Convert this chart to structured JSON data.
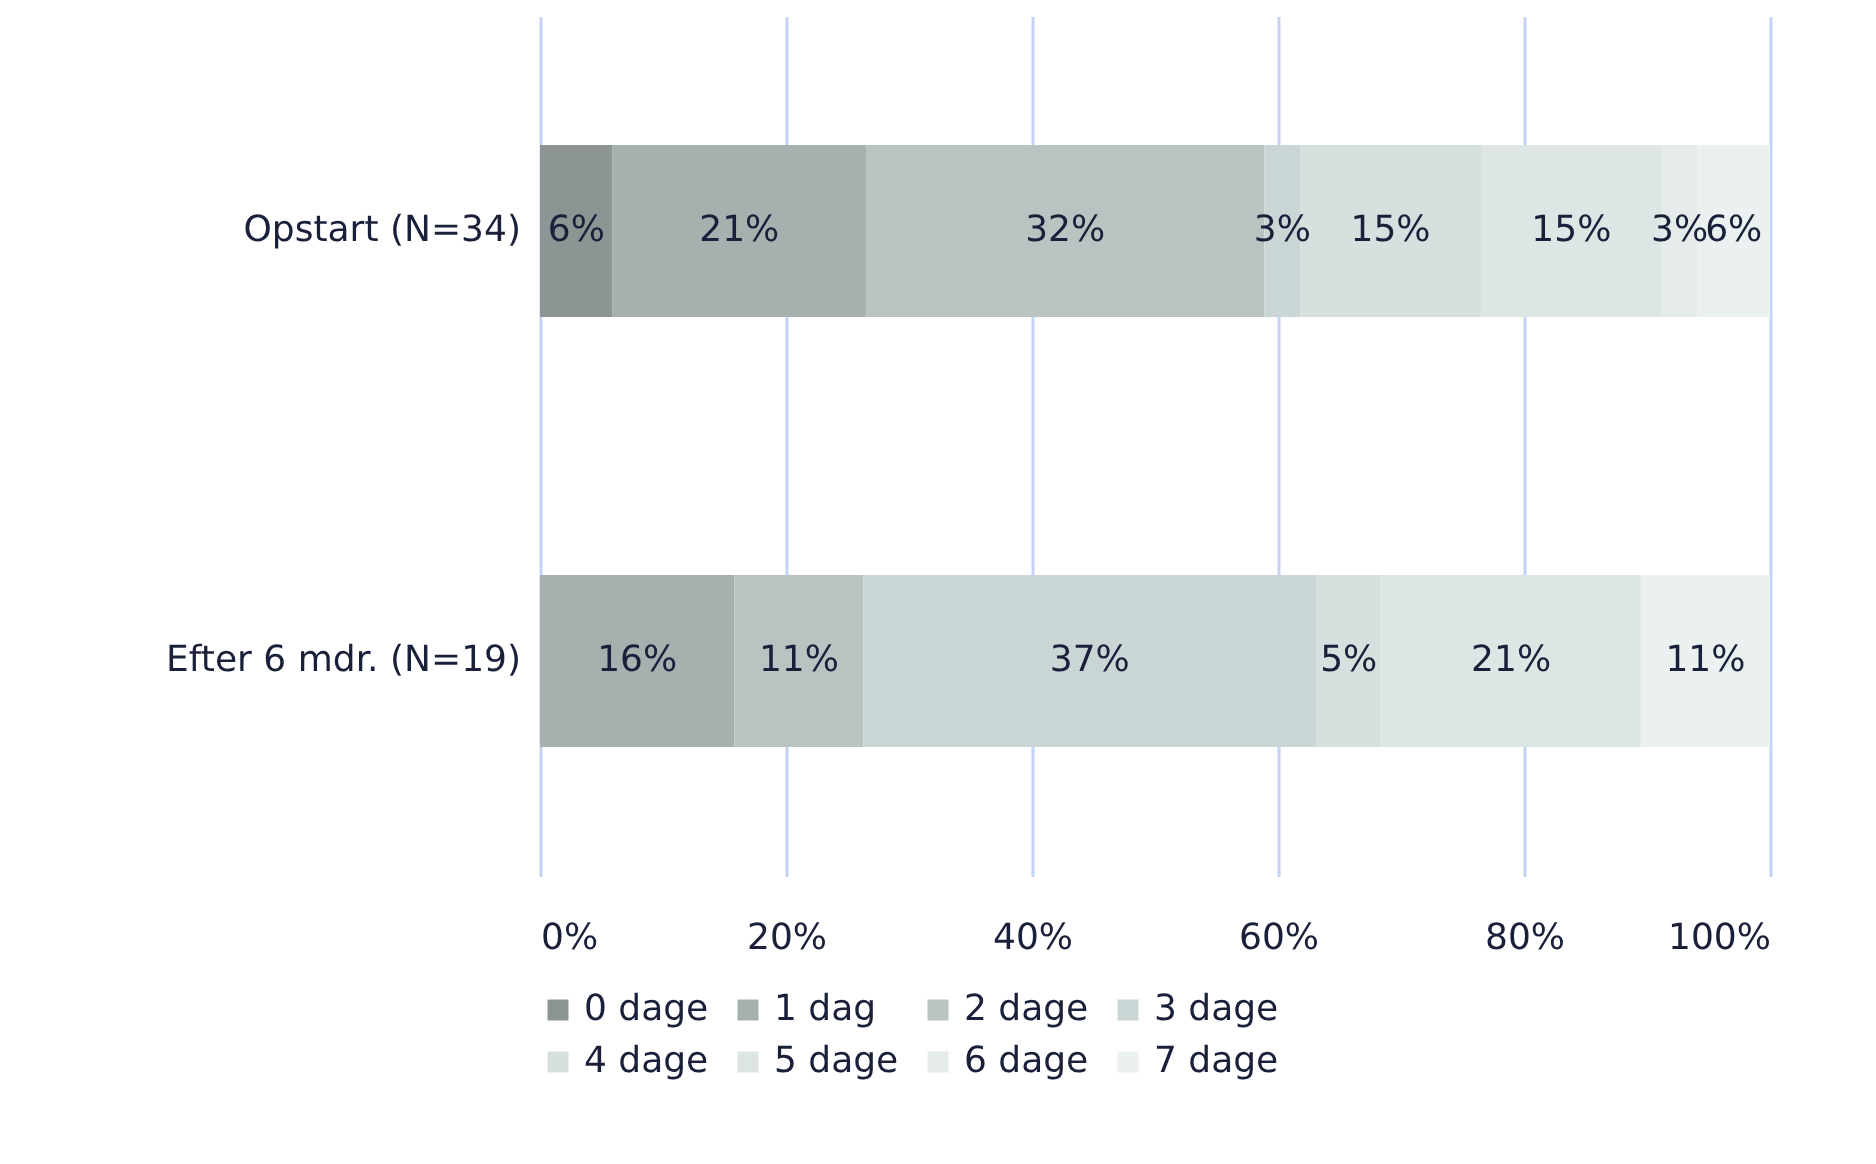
{
  "chart_data": {
    "type": "bar",
    "orientation": "horizontal",
    "stacked": true,
    "categories": [
      "Opstart (N=34)",
      "Efter 6 mdr. (N=19)"
    ],
    "series": [
      {
        "name": "0 dage",
        "color": "#8c9593",
        "values": [
          5.9,
          null
        ],
        "value_labels": [
          "6%",
          null
        ]
      },
      {
        "name": "1 dag",
        "color": "#a5b0af",
        "values": [
          20.6,
          15.8
        ],
        "value_labels": [
          "21%",
          "16%"
        ]
      },
      {
        "name": "2 dage",
        "color": "#b8c3c2",
        "values": [
          32.4,
          10.5
        ],
        "value_labels": [
          "32%",
          "11%"
        ]
      },
      {
        "name": "3 dage",
        "color": "#c9d6d5",
        "values": [
          2.9,
          36.8
        ],
        "value_labels": [
          "3%",
          "37%"
        ]
      },
      {
        "name": "4 dage",
        "color": "#d5e0df",
        "values": [
          14.7,
          5.3
        ],
        "value_labels": [
          "15%",
          "5%"
        ]
      },
      {
        "name": "5 dage",
        "color": "#dde6e4",
        "values": [
          14.7,
          21.1
        ],
        "value_labels": [
          "15%",
          "21%"
        ]
      },
      {
        "name": "6 dage",
        "color": "#e4ebea",
        "values": [
          2.9,
          null
        ],
        "value_labels": [
          "3%",
          null
        ]
      },
      {
        "name": "7 dage",
        "color": "#ebf1f0",
        "values": [
          5.9,
          10.5
        ],
        "value_labels": [
          "6%",
          "11%"
        ]
      }
    ],
    "xlim": [
      0,
      100
    ],
    "xticks": [
      {
        "value": 0,
        "label": "0%"
      },
      {
        "value": 20,
        "label": "20%"
      },
      {
        "value": 40,
        "label": "40%"
      },
      {
        "value": 60,
        "label": "60%"
      },
      {
        "value": 80,
        "label": "80%"
      },
      {
        "value": 100,
        "label": "100%"
      }
    ],
    "grid": "x",
    "legend": "bottom"
  }
}
